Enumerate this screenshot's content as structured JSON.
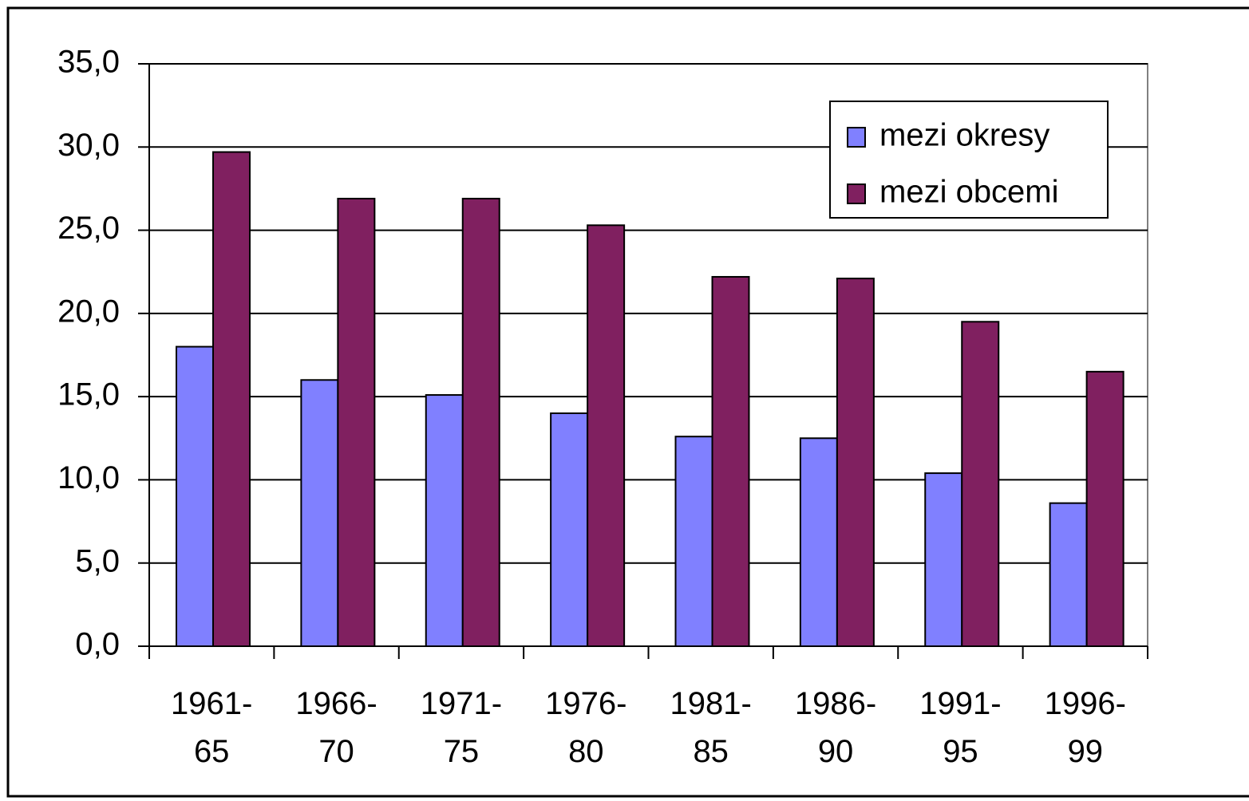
{
  "chart_data": {
    "type": "bar",
    "categories": [
      "1961-65",
      "1966-70",
      "1971-75",
      "1976-80",
      "1981-85",
      "1986-90",
      "1991-95",
      "1996-99"
    ],
    "series": [
      {
        "name": "mezi okresy",
        "color": "#8080ff",
        "values": [
          18.0,
          16.0,
          15.1,
          14.0,
          12.6,
          12.5,
          10.4,
          8.6
        ]
      },
      {
        "name": "mezi obcemi",
        "color": "#802060",
        "values": [
          29.7,
          26.9,
          26.9,
          25.3,
          22.2,
          22.1,
          19.5,
          16.5
        ]
      }
    ],
    "ylim": [
      0,
      35
    ],
    "yticks": [
      {
        "value": 0,
        "label": "0,0"
      },
      {
        "value": 5,
        "label": "5,0"
      },
      {
        "value": 10,
        "label": "10,0"
      },
      {
        "value": 15,
        "label": "15,0"
      },
      {
        "value": 20,
        "label": "20,0"
      },
      {
        "value": 25,
        "label": "25,0"
      },
      {
        "value": 30,
        "label": "30,0"
      },
      {
        "value": 35,
        "label": "35,0"
      }
    ],
    "grid": true,
    "legend": "top-right"
  }
}
